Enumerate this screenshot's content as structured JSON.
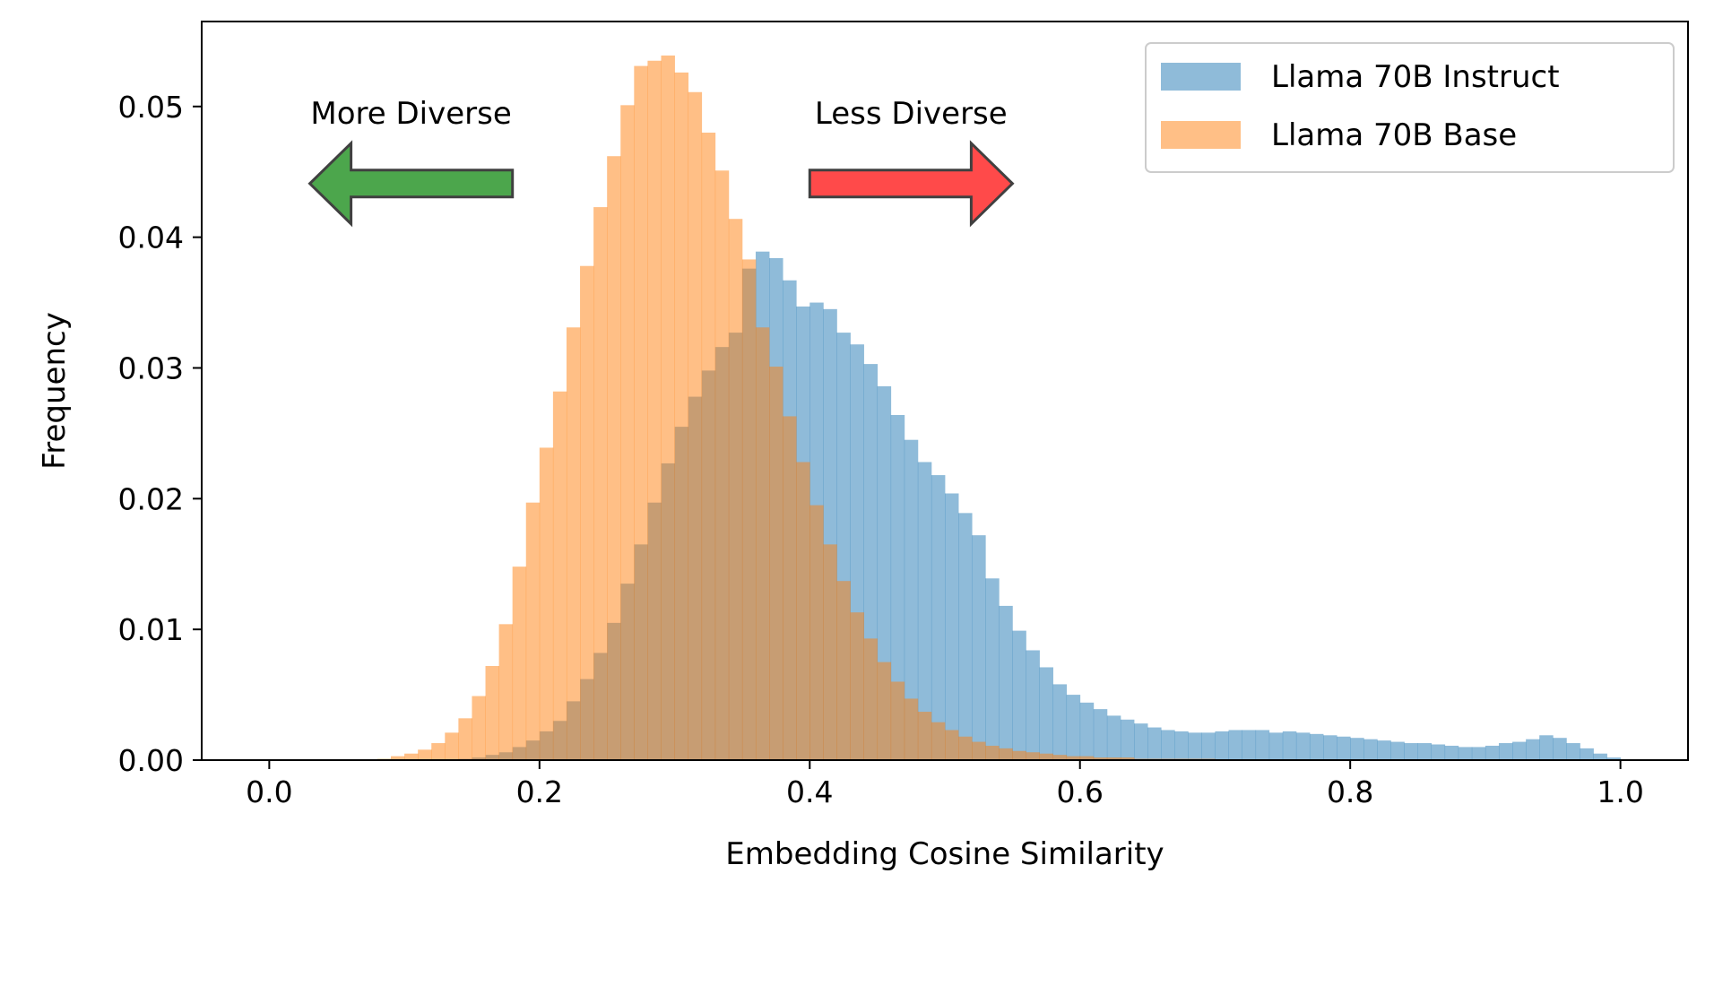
{
  "chart_data": {
    "type": "histogram",
    "title": "",
    "xlabel": "Embedding Cosine Similarity",
    "ylabel": "Frequency",
    "xlim": [
      -0.05,
      1.05
    ],
    "ylim": [
      0,
      0.0565
    ],
    "x_ticks": [
      0.0,
      0.2,
      0.4,
      0.6,
      0.8,
      1.0
    ],
    "x_tick_labels": [
      "0.0",
      "0.2",
      "0.4",
      "0.6",
      "0.8",
      "1.0"
    ],
    "y_ticks": [
      0.0,
      0.01,
      0.02,
      0.03,
      0.04,
      0.05
    ],
    "y_tick_labels": [
      "0.00",
      "0.01",
      "0.02",
      "0.03",
      "0.04",
      "0.05"
    ],
    "grid": false,
    "legend_placement": "top-right",
    "bin_start": 0.0,
    "bin_width": 0.01,
    "series": [
      {
        "name": "Llama 70B Instruct",
        "color": "#1f77b4",
        "alpha": 0.5,
        "values": [
          0,
          0,
          0,
          0,
          0,
          0,
          0,
          0,
          0,
          0,
          0,
          0,
          0,
          0,
          0.0001,
          0.0002,
          0.0004,
          0.0006,
          0.001,
          0.0015,
          0.0022,
          0.003,
          0.0045,
          0.0062,
          0.0082,
          0.0105,
          0.0135,
          0.0165,
          0.0197,
          0.0227,
          0.0255,
          0.0278,
          0.0298,
          0.0316,
          0.0327,
          0.0376,
          0.0389,
          0.0384,
          0.0367,
          0.0347,
          0.035,
          0.0345,
          0.0327,
          0.0318,
          0.0303,
          0.0286,
          0.0264,
          0.0245,
          0.0228,
          0.0218,
          0.0204,
          0.0189,
          0.0172,
          0.0139,
          0.0118,
          0.0099,
          0.0084,
          0.0071,
          0.0058,
          0.005,
          0.0044,
          0.0039,
          0.0034,
          0.0031,
          0.0028,
          0.0025,
          0.0023,
          0.0022,
          0.0021,
          0.0021,
          0.0022,
          0.0023,
          0.0023,
          0.0023,
          0.0021,
          0.0022,
          0.0021,
          0.002,
          0.0019,
          0.0018,
          0.0017,
          0.0016,
          0.0015,
          0.0014,
          0.0013,
          0.0013,
          0.0012,
          0.0011,
          0.001,
          0.001,
          0.0011,
          0.0013,
          0.0014,
          0.0016,
          0.0019,
          0.0017,
          0.0013,
          0.0009,
          0.0005,
          0.0002
        ]
      },
      {
        "name": "Llama 70B Base",
        "color": "#ff7f0e",
        "alpha": 0.5,
        "values": [
          0,
          0,
          0,
          0,
          0,
          0,
          0,
          0,
          0.0001,
          0.0003,
          0.0005,
          0.0008,
          0.0013,
          0.0021,
          0.0032,
          0.0049,
          0.0072,
          0.0104,
          0.0148,
          0.0197,
          0.0239,
          0.0282,
          0.0331,
          0.0378,
          0.0423,
          0.0462,
          0.0501,
          0.0531,
          0.0535,
          0.0539,
          0.0526,
          0.0511,
          0.048,
          0.0451,
          0.0414,
          0.0383,
          0.0331,
          0.0301,
          0.0263,
          0.0228,
          0.0195,
          0.0165,
          0.0137,
          0.0113,
          0.0093,
          0.0075,
          0.006,
          0.0047,
          0.0037,
          0.0029,
          0.0023,
          0.0018,
          0.0014,
          0.0011,
          0.0009,
          0.0007,
          0.0006,
          0.0005,
          0.0004,
          0.0003,
          0.0003,
          0.0002,
          0.0002,
          0.0002,
          0.0001,
          0.0001,
          0.0001,
          0.0001,
          0.0001,
          0.0001,
          0,
          0,
          0,
          0,
          0,
          0,
          0,
          0,
          0,
          0,
          0,
          0,
          0,
          0,
          0,
          0,
          0,
          0,
          0,
          0,
          0,
          0,
          0,
          0,
          0,
          0,
          0,
          0,
          0,
          0
        ]
      }
    ],
    "annotations": [
      {
        "text": "More Diverse",
        "arrow_direction": "left",
        "arrow_color": "#4ca64c",
        "x_from": 0.18,
        "x_to": 0.03,
        "y": 0.0441
      },
      {
        "text": "Less Diverse",
        "arrow_direction": "right",
        "arrow_color": "#ff4a4a",
        "x_from": 0.4,
        "x_to": 0.55,
        "y": 0.0441
      }
    ]
  }
}
